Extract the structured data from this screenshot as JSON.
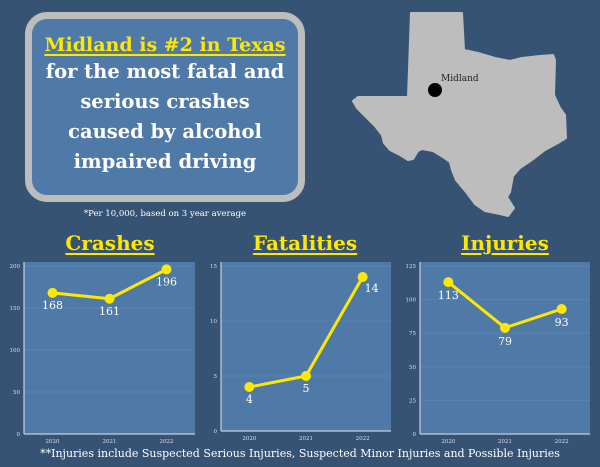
{
  "headline": "Midland is #2 in Texas",
  "body_lines": [
    "for the most fatal and",
    "serious crashes",
    "caused by alcohol",
    "impaired driving"
  ],
  "footnote": "*Per 10,000, based on 3 year average",
  "map": {
    "label": "Midland",
    "state_color": "#bdbdbd",
    "marker_color": "#000000"
  },
  "bottom_note": "**Injuries include Suspected Serious Injuries, Suspected Minor Injuries and Possible Injuries",
  "colors": {
    "background": "#375374",
    "panel": "#4f7aa8",
    "accent": "#ffe800",
    "border": "#bdbdbd"
  },
  "chart_data": [
    {
      "type": "line",
      "title": "Crashes",
      "categories": [
        "2020",
        "2021",
        "2022"
      ],
      "values": [
        168,
        161,
        196
      ],
      "ylim": [
        0,
        200
      ],
      "yticks": [
        0,
        50,
        100,
        150,
        200
      ],
      "grid": true
    },
    {
      "type": "line",
      "title": "Fatalities",
      "categories": [
        "2020",
        "2021",
        "2022"
      ],
      "values": [
        4,
        5,
        14
      ],
      "ylim": [
        0,
        15
      ],
      "yticks": [
        0,
        5,
        10,
        15
      ],
      "grid": true
    },
    {
      "type": "line",
      "title": "Injuries",
      "categories": [
        "2020",
        "2021",
        "2022"
      ],
      "values": [
        113,
        79,
        93
      ],
      "ylim": [
        0,
        125
      ],
      "yticks": [
        0,
        25,
        50,
        75,
        100,
        125
      ],
      "grid": true
    }
  ]
}
